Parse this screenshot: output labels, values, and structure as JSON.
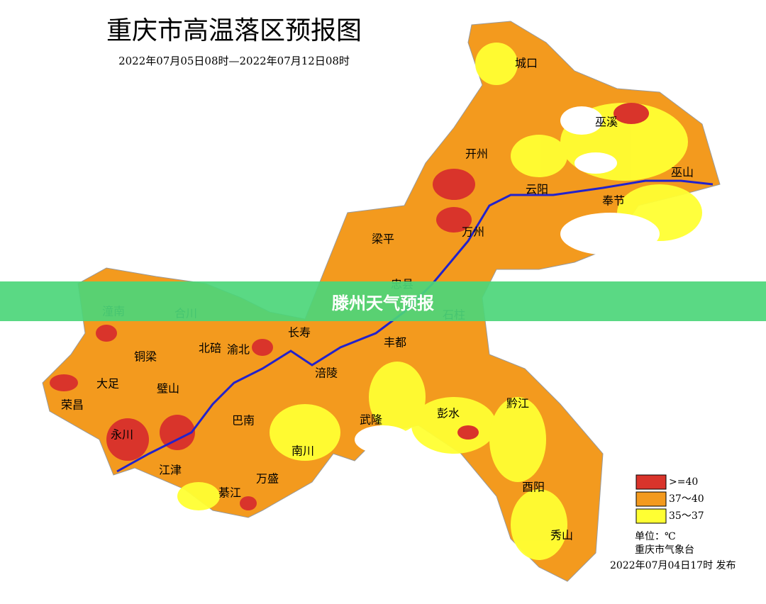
{
  "header": {
    "title": "重庆市高温落区预报图",
    "subtitle": "2022年07月05日08时—2022年07月12日08时"
  },
  "places": [
    "城口",
    "巫溪",
    "巫山",
    "开州",
    "云阳",
    "奉节",
    "梁平",
    "万州",
    "忠县",
    "石柱",
    "潼南",
    "合川",
    "长寿",
    "北碚",
    "渝北",
    "铜梁",
    "大足",
    "璧山",
    "荣昌",
    "永川",
    "江津",
    "巴南",
    "涪陵",
    "丰都",
    "武隆",
    "彭水",
    "黔江",
    "南川",
    "万盛",
    "綦江",
    "酉阳",
    "秀山"
  ],
  "legend": {
    "items": [
      ">=40",
      "37～40",
      "35～37"
    ],
    "unit": "单位：℃",
    "issuer": "重庆市气象台",
    "issued": "2022年07月04日17时  发布"
  },
  "banner": "滕州天气预报"
}
